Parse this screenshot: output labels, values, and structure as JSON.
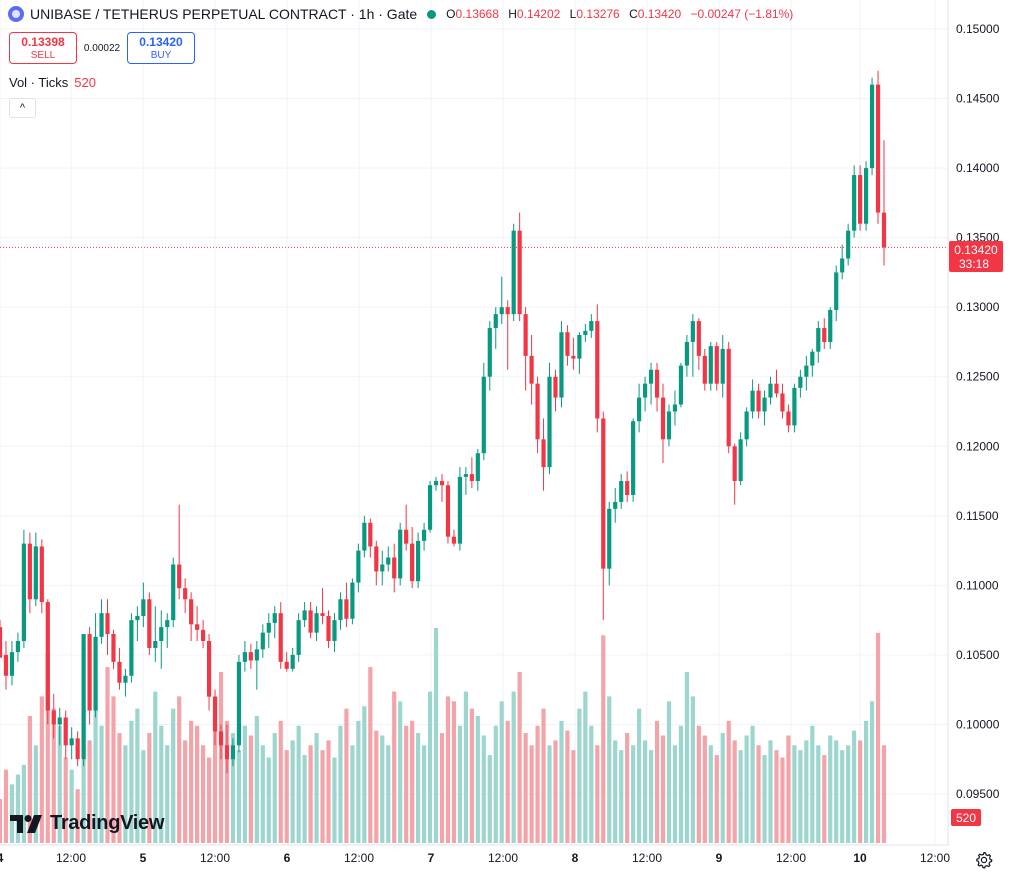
{
  "header": {
    "title": "UNIBASE / TETHERUS PERPETUAL CONTRACT · 1h · Gate",
    "o_label": "O",
    "o": "0.13668",
    "h_label": "H",
    "h": "0.14202",
    "l_label": "L",
    "l": "0.13276",
    "c_label": "C",
    "c": "0.13420",
    "change": "−0.00247 (−1.81%)"
  },
  "trade": {
    "sell_price": "0.13398",
    "sell_label": "SELL",
    "spread": "0.00022",
    "buy_price": "0.13420",
    "buy_label": "BUY"
  },
  "volume_legend": {
    "label": "Vol · Ticks",
    "value": "520"
  },
  "collapse_icon": "^",
  "logo": {
    "text": "TradingView",
    "icon": "tradingview-logo-icon"
  },
  "settings_icon": "gear-icon",
  "colors": {
    "up": "#089981",
    "down": "#f23645",
    "up_vol": "#9dd6cf",
    "down_vol": "#f4a4a8",
    "grid": "#f0f3fa"
  },
  "chart_data": {
    "type": "candlestick",
    "timeframe": "1h",
    "price_axis": {
      "ticks": [
        "0.15000",
        "0.14500",
        "0.14000",
        "0.13500",
        "0.13000",
        "0.12500",
        "0.12000",
        "0.11500",
        "0.11000",
        "0.10500",
        "0.10000",
        "0.09500"
      ],
      "min": 0.0928,
      "max": 0.1513
    },
    "time_axis": {
      "labels": [
        "4",
        "12:00",
        "5",
        "12:00",
        "6",
        "12:00",
        "7",
        "12:00",
        "8",
        "12:00",
        "9",
        "12:00",
        "10",
        "12:00"
      ]
    },
    "last_price": {
      "label": "0.13420",
      "countdown": "33:18"
    },
    "volume_label": "520",
    "candles": [
      [
        0.107,
        0.1075,
        0.105,
        0.1048
      ],
      [
        0.105,
        0.106,
        0.1025,
        0.1035
      ],
      [
        0.1035,
        0.106,
        0.1028,
        0.1052
      ],
      [
        0.1052,
        0.1066,
        0.1045,
        0.106
      ],
      [
        0.106,
        0.114,
        0.1055,
        0.113
      ],
      [
        0.113,
        0.1138,
        0.108,
        0.109
      ],
      [
        0.109,
        0.1138,
        0.1085,
        0.1128
      ],
      [
        0.1128,
        0.1133,
        0.108,
        0.1088
      ],
      [
        0.1088,
        0.109,
        0.1,
        0.101
      ],
      [
        0.101,
        0.1022,
        0.099,
        0.1
      ],
      [
        0.1,
        0.1012,
        0.0985,
        0.1005
      ],
      [
        0.1005,
        0.101,
        0.0975,
        0.0985
      ],
      [
        0.0985,
        0.0998,
        0.0975,
        0.099
      ],
      [
        0.099,
        0.0995,
        0.097,
        0.0975
      ],
      [
        0.0975,
        0.106,
        0.097,
        0.1065
      ],
      [
        0.1065,
        0.107,
        0.1,
        0.101
      ],
      [
        0.101,
        0.108,
        0.1005,
        0.1063
      ],
      [
        0.1063,
        0.109,
        0.1058,
        0.108
      ],
      [
        0.108,
        0.109,
        0.105,
        0.1065
      ],
      [
        0.1065,
        0.1068,
        0.104,
        0.1045
      ],
      [
        0.1045,
        0.1055,
        0.1025,
        0.103
      ],
      [
        0.103,
        0.104,
        0.102,
        0.1035
      ],
      [
        0.1035,
        0.108,
        0.103,
        0.1075
      ],
      [
        0.1075,
        0.1085,
        0.106,
        0.1078
      ],
      [
        0.1078,
        0.1102,
        0.107,
        0.109
      ],
      [
        0.109,
        0.1095,
        0.105,
        0.1055
      ],
      [
        0.1055,
        0.1085,
        0.1045,
        0.106
      ],
      [
        0.106,
        0.1082,
        0.104,
        0.107
      ],
      [
        0.107,
        0.108,
        0.1055,
        0.1075
      ],
      [
        0.1075,
        0.112,
        0.107,
        0.1115
      ],
      [
        0.1115,
        0.1158,
        0.109,
        0.1098
      ],
      [
        0.1098,
        0.1105,
        0.108,
        0.109
      ],
      [
        0.109,
        0.1095,
        0.106,
        0.1072
      ],
      [
        0.1072,
        0.1085,
        0.106,
        0.1068
      ],
      [
        0.1068,
        0.1075,
        0.1055,
        0.106
      ],
      [
        0.106,
        0.1065,
        0.101,
        0.102
      ],
      [
        0.102,
        0.1025,
        0.0985,
        0.0995
      ],
      [
        0.0995,
        0.1,
        0.0975,
        0.0985
      ],
      [
        0.0985,
        0.1,
        0.0965,
        0.0975
      ],
      [
        0.0975,
        0.099,
        0.097,
        0.0985
      ],
      [
        0.0985,
        0.105,
        0.098,
        0.1045
      ],
      [
        0.1045,
        0.106,
        0.1038,
        0.1052
      ],
      [
        0.1052,
        0.1058,
        0.104,
        0.1046
      ],
      [
        0.1046,
        0.106,
        0.1025,
        0.1054
      ],
      [
        0.1054,
        0.1072,
        0.1048,
        0.1066
      ],
      [
        0.1066,
        0.108,
        0.1055,
        0.1073
      ],
      [
        0.1073,
        0.1085,
        0.1062,
        0.108
      ],
      [
        0.108,
        0.1088,
        0.104,
        0.1045
      ],
      [
        0.1045,
        0.1052,
        0.1038,
        0.104
      ],
      [
        0.104,
        0.1055,
        0.1038,
        0.105
      ],
      [
        0.105,
        0.108,
        0.1045,
        0.1075
      ],
      [
        0.1075,
        0.1088,
        0.107,
        0.1082
      ],
      [
        0.1082,
        0.1088,
        0.1062,
        0.1066
      ],
      [
        0.1066,
        0.1085,
        0.106,
        0.108
      ],
      [
        0.108,
        0.1098,
        0.1072,
        0.1078
      ],
      [
        0.1078,
        0.1082,
        0.1055,
        0.106
      ],
      [
        0.106,
        0.108,
        0.1052,
        0.1075
      ],
      [
        0.1075,
        0.1095,
        0.1068,
        0.109
      ],
      [
        0.109,
        0.1102,
        0.107,
        0.1076
      ],
      [
        0.1076,
        0.1105,
        0.1072,
        0.1102
      ],
      [
        0.1102,
        0.113,
        0.1095,
        0.1125
      ],
      [
        0.1125,
        0.115,
        0.112,
        0.1145
      ],
      [
        0.1145,
        0.1148,
        0.112,
        0.1128
      ],
      [
        0.1128,
        0.1132,
        0.11,
        0.111
      ],
      [
        0.111,
        0.1125,
        0.11,
        0.1115
      ],
      [
        0.1115,
        0.1128,
        0.111,
        0.112
      ],
      [
        0.112,
        0.113,
        0.1095,
        0.1105
      ],
      [
        0.1105,
        0.1145,
        0.11,
        0.114
      ],
      [
        0.114,
        0.1158,
        0.1125,
        0.113
      ],
      [
        0.113,
        0.1142,
        0.1098,
        0.1103
      ],
      [
        0.1103,
        0.1138,
        0.1098,
        0.1132
      ],
      [
        0.1132,
        0.1145,
        0.1125,
        0.114
      ],
      [
        0.114,
        0.1175,
        0.1138,
        0.1172
      ],
      [
        0.1172,
        0.1178,
        0.1168,
        0.1175
      ],
      [
        0.1175,
        0.118,
        0.116,
        0.1172
      ],
      [
        0.1172,
        0.1175,
        0.113,
        0.1135
      ],
      [
        0.1135,
        0.114,
        0.1128,
        0.113
      ],
      [
        0.113,
        0.1185,
        0.1125,
        0.1178
      ],
      [
        0.1178,
        0.1185,
        0.1165,
        0.118
      ],
      [
        0.118,
        0.1192,
        0.117,
        0.1175
      ],
      [
        0.1175,
        0.1198,
        0.1168,
        0.1195
      ],
      [
        0.1195,
        0.126,
        0.119,
        0.125
      ],
      [
        0.125,
        0.129,
        0.124,
        0.1285
      ],
      [
        0.1285,
        0.13,
        0.127,
        0.1295
      ],
      [
        0.1295,
        0.1322,
        0.1288,
        0.13
      ],
      [
        0.13,
        0.1305,
        0.1255,
        0.1295
      ],
      [
        0.1295,
        0.136,
        0.129,
        0.1355
      ],
      [
        0.1355,
        0.1368,
        0.129,
        0.1295
      ],
      [
        0.1295,
        0.13,
        0.124,
        0.1265
      ],
      [
        0.1265,
        0.128,
        0.123,
        0.1245
      ],
      [
        0.1245,
        0.125,
        0.1195,
        0.1205
      ],
      [
        0.1205,
        0.122,
        0.1168,
        0.1185
      ],
      [
        0.1185,
        0.126,
        0.118,
        0.125
      ],
      [
        0.125,
        0.1255,
        0.1225,
        0.1235
      ],
      [
        0.1235,
        0.129,
        0.1228,
        0.1282
      ],
      [
        0.1282,
        0.1287,
        0.1258,
        0.1265
      ],
      [
        0.1265,
        0.1278,
        0.1255,
        0.1263
      ],
      [
        0.1263,
        0.1282,
        0.1252,
        0.128
      ],
      [
        0.128,
        0.1288,
        0.1275,
        0.1283
      ],
      [
        0.1283,
        0.1295,
        0.1278,
        0.129
      ],
      [
        0.129,
        0.1302,
        0.121,
        0.122
      ],
      [
        0.122,
        0.1225,
        0.1075,
        0.1112
      ],
      [
        0.1112,
        0.116,
        0.11,
        0.1155
      ],
      [
        0.1155,
        0.117,
        0.1145,
        0.116
      ],
      [
        0.116,
        0.118,
        0.1155,
        0.1175
      ],
      [
        0.1175,
        0.1182,
        0.116,
        0.1165
      ],
      [
        0.1165,
        0.122,
        0.116,
        0.1218
      ],
      [
        0.1218,
        0.1245,
        0.121,
        0.1235
      ],
      [
        0.1235,
        0.125,
        0.1225,
        0.1245
      ],
      [
        0.1245,
        0.126,
        0.123,
        0.1255
      ],
      [
        0.1255,
        0.126,
        0.1225,
        0.1235
      ],
      [
        0.1235,
        0.1245,
        0.1188,
        0.1205
      ],
      [
        0.1205,
        0.123,
        0.12,
        0.1225
      ],
      [
        0.1225,
        0.124,
        0.1215,
        0.123
      ],
      [
        0.123,
        0.126,
        0.1228,
        0.1258
      ],
      [
        0.1258,
        0.128,
        0.125,
        0.1275
      ],
      [
        0.1275,
        0.1295,
        0.125,
        0.129
      ],
      [
        0.129,
        0.1292,
        0.1255,
        0.1265
      ],
      [
        0.1265,
        0.127,
        0.124,
        0.1245
      ],
      [
        0.1245,
        0.1275,
        0.124,
        0.1272
      ],
      [
        0.1272,
        0.1275,
        0.124,
        0.1245
      ],
      [
        0.1245,
        0.128,
        0.1235,
        0.127
      ],
      [
        0.127,
        0.1275,
        0.1195,
        0.12
      ],
      [
        0.12,
        0.1202,
        0.1158,
        0.1175
      ],
      [
        0.1175,
        0.121,
        0.1172,
        0.1205
      ],
      [
        0.1205,
        0.1228,
        0.12,
        0.1225
      ],
      [
        0.1225,
        0.1248,
        0.122,
        0.124
      ],
      [
        0.124,
        0.1245,
        0.122,
        0.1225
      ],
      [
        0.1225,
        0.124,
        0.1215,
        0.1235
      ],
      [
        0.1235,
        0.125,
        0.123,
        0.1245
      ],
      [
        0.1245,
        0.1255,
        0.1235,
        0.1238
      ],
      [
        0.1238,
        0.1245,
        0.122,
        0.1225
      ],
      [
        0.1225,
        0.123,
        0.121,
        0.1215
      ],
      [
        0.1215,
        0.1245,
        0.121,
        0.1242
      ],
      [
        0.1242,
        0.1255,
        0.1235,
        0.125
      ],
      [
        0.125,
        0.1265,
        0.124,
        0.1258
      ],
      [
        0.1258,
        0.127,
        0.125,
        0.1268
      ],
      [
        0.1268,
        0.129,
        0.126,
        0.1285
      ],
      [
        0.1285,
        0.1292,
        0.127,
        0.1275
      ],
      [
        0.1275,
        0.13,
        0.127,
        0.1298
      ],
      [
        0.1298,
        0.133,
        0.129,
        0.1325
      ],
      [
        0.1325,
        0.1345,
        0.132,
        0.1335
      ],
      [
        0.1335,
        0.136,
        0.133,
        0.1355
      ],
      [
        0.1355,
        0.1402,
        0.135,
        0.1395
      ],
      [
        0.1395,
        0.1402,
        0.1355,
        0.136
      ],
      [
        0.136,
        0.1405,
        0.1355,
        0.14
      ],
      [
        0.14,
        0.1465,
        0.1395,
        0.146
      ],
      [
        0.146,
        0.147,
        0.136,
        0.1368
      ],
      [
        0.1368,
        0.142,
        0.133,
        0.1343
      ]
    ],
    "volumes": [
      18,
      30,
      24,
      28,
      32,
      52,
      40,
      60,
      78,
      55,
      48,
      35,
      30,
      22,
      58,
      42,
      65,
      48,
      72,
      60,
      45,
      40,
      50,
      55,
      38,
      45,
      62,
      48,
      40,
      55,
      60,
      42,
      50,
      48,
      40,
      35,
      60,
      70,
      50,
      45,
      38,
      48,
      44,
      52,
      40,
      35,
      45,
      50,
      38,
      42,
      48,
      36,
      40,
      45,
      38,
      42,
      35,
      48,
      55,
      40,
      50,
      56,
      72,
      46,
      44,
      40,
      62,
      58,
      48,
      50,
      45,
      40,
      62,
      88,
      45,
      60,
      58,
      48,
      62,
      55,
      52,
      44,
      36,
      48,
      58,
      50,
      62,
      70,
      45,
      40,
      48,
      55,
      40,
      42,
      50,
      46,
      38,
      55,
      62,
      48,
      40,
      85,
      60,
      42,
      38,
      45,
      40,
      55,
      42,
      38,
      50,
      44,
      58,
      40,
      48,
      70,
      60,
      48,
      44,
      40,
      36,
      45,
      50,
      42,
      38,
      44,
      48,
      40,
      36,
      42,
      38,
      35,
      44,
      40,
      38,
      42,
      48,
      40,
      36,
      44,
      42,
      38,
      40,
      46,
      42,
      50,
      58,
      86,
      40,
      44,
      42
    ]
  }
}
